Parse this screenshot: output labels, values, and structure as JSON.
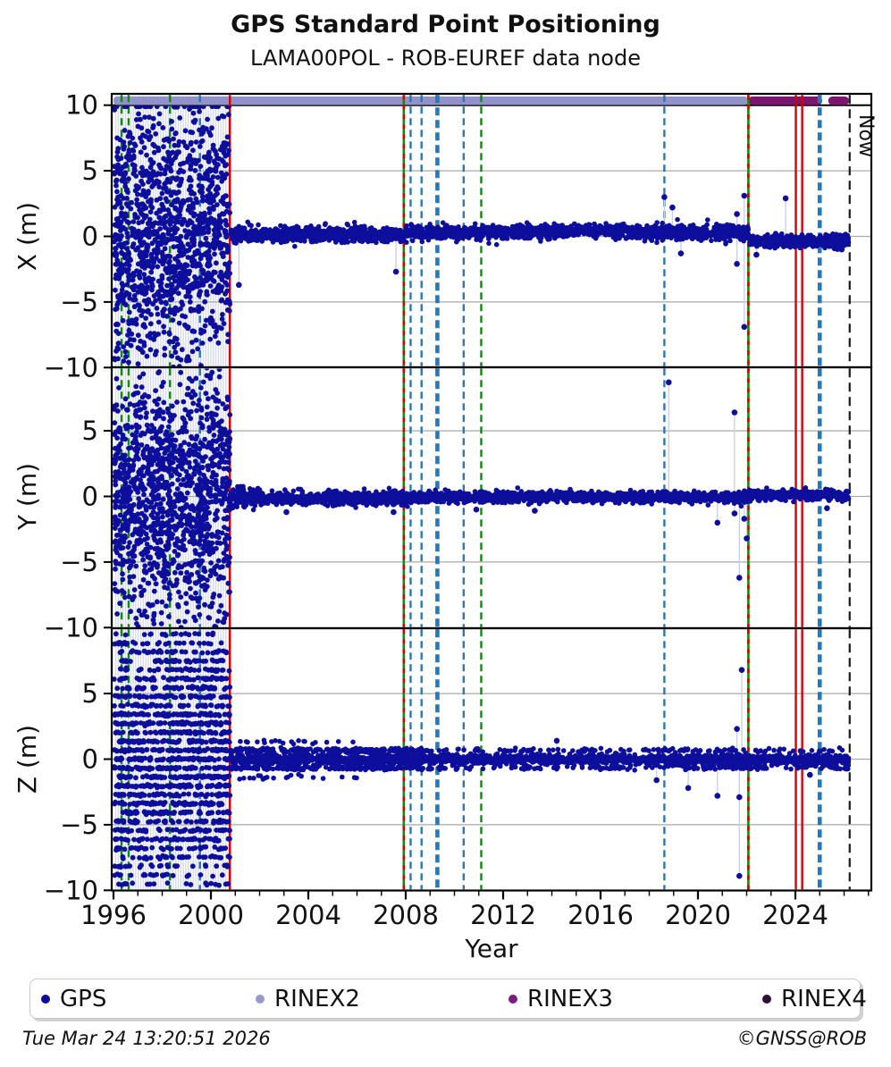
{
  "header": {
    "title": "GPS Standard Point Positioning",
    "subtitle": "LAMA00POL - ROB-EUREF data node"
  },
  "legend": {
    "items": [
      {
        "label": "GPS",
        "color": "#0a0a9b"
      },
      {
        "label": "RINEX2",
        "color": "#9898ce"
      },
      {
        "label": "RINEX3",
        "color": "#7a1d7e"
      },
      {
        "label": "RINEX4",
        "color": "#2e0f38"
      }
    ]
  },
  "footer": {
    "timestamp": "Tue Mar 24 13:20:51 2026",
    "credit": "©GNSS@ROB"
  },
  "chart_data": {
    "type": "scatter",
    "title": "GPS Standard Point Positioning",
    "subtitle": "LAMA00POL - ROB-EUREF data node",
    "xlabel": "Year",
    "x_range": [
      1995.93,
      2027.15
    ],
    "x_ticks_major": [
      1996,
      2000,
      2004,
      2008,
      2012,
      2016,
      2020,
      2024
    ],
    "x_minor_step": 1,
    "gridlines_y": [
      5,
      0,
      -5
    ],
    "grid_on": true,
    "now_year": 2026.23,
    "now_label": "Now",
    "point_color": "#0e0e9c",
    "colors": {
      "green": "#0e8a0e",
      "blue": "#2878b8",
      "red": "#d40000",
      "black": "#1a1a1a",
      "rinex2_bar": "#9292cb",
      "rinex3_bar": "#7c156e",
      "grid": "#a9a9a9",
      "stripe": "#ccd1e6"
    },
    "rinex_bar": {
      "rinex2_segments": [
        [
          1996.0,
          2022.05
        ]
      ],
      "rinex3_segments": [
        [
          2022.07,
          2025.1
        ],
        [
          2025.35,
          2026.2
        ]
      ]
    },
    "event_lines": [
      {
        "year": 1996.33,
        "color": "green",
        "style": "dashed"
      },
      {
        "year": 1996.62,
        "color": "green",
        "style": "dashed"
      },
      {
        "year": 1998.32,
        "color": "green",
        "style": "dashed"
      },
      {
        "year": 1999.55,
        "color": "blue",
        "style": "dashed"
      },
      {
        "year": 2000.78,
        "color": "red",
        "style": "solid"
      },
      {
        "year": 2007.92,
        "color": "green",
        "style": "solid-red-overlay"
      },
      {
        "year": 2008.2,
        "color": "blue",
        "style": "dashed"
      },
      {
        "year": 2008.65,
        "color": "blue",
        "style": "dashed"
      },
      {
        "year": 2009.3,
        "color": "blue",
        "style": "thick-dashed"
      },
      {
        "year": 2010.38,
        "color": "blue",
        "style": "dashed"
      },
      {
        "year": 2011.1,
        "color": "green",
        "style": "dashed"
      },
      {
        "year": 2018.62,
        "color": "blue",
        "style": "dashed"
      },
      {
        "year": 2022.07,
        "color": "green",
        "style": "solid-red-overlay"
      },
      {
        "year": 2024.02,
        "color": "red",
        "style": "solid"
      },
      {
        "year": 2024.28,
        "color": "red",
        "style": "solid"
      },
      {
        "year": 2025.0,
        "color": "blue",
        "style": "thick-dashed"
      },
      {
        "year": 2026.23,
        "color": "black",
        "style": "dashed",
        "label": "Now"
      }
    ],
    "subplots": [
      {
        "ylabel": "X (m)",
        "ylim": [
          -10,
          10
        ],
        "yticks": [
          10,
          5,
          0,
          -5,
          -10
        ],
        "dense_cloud": {
          "x_range": [
            1996.03,
            2000.78
          ],
          "center": 0,
          "sd": 4.8,
          "n": 1350,
          "quantize": 0
        },
        "band_density_per_year": 95,
        "band_segments": [
          [
            2000.78,
            2008.0,
            0.15,
            0.3
          ],
          [
            2008.0,
            2014.0,
            0.3,
            0.27
          ],
          [
            2014.0,
            2017.0,
            0.45,
            0.25
          ],
          [
            2017.0,
            2022.07,
            0.3,
            0.3
          ],
          [
            2022.07,
            2026.2,
            -0.35,
            0.25
          ]
        ],
        "side_rows": [],
        "outliers": [
          [
            2001.15,
            -3.7
          ],
          [
            2007.6,
            -2.7
          ],
          [
            2018.62,
            3.0
          ],
          [
            2018.95,
            2.2
          ],
          [
            2019.3,
            -1.3
          ],
          [
            2021.6,
            1.7
          ],
          [
            2021.9,
            3.1
          ],
          [
            2021.6,
            -2.1
          ],
          [
            2021.9,
            -6.9
          ],
          [
            2022.4,
            -1.4
          ],
          [
            2023.6,
            2.9
          ],
          [
            2025.9,
            -1.0
          ]
        ]
      },
      {
        "ylabel": "Y (m)",
        "ylim": [
          -10,
          10
        ],
        "yticks": [
          5,
          0,
          -5,
          -10
        ],
        "dense_cloud": {
          "x_range": [
            1996.03,
            2000.78
          ],
          "center": 0,
          "sd": 4.8,
          "n": 1350,
          "quantize": 0
        },
        "band_density_per_year": 95,
        "band_segments": [
          [
            2000.78,
            2002.0,
            -0.1,
            0.4
          ],
          [
            2002.0,
            2009.0,
            -0.15,
            0.25
          ],
          [
            2009.0,
            2022.0,
            -0.05,
            0.2
          ],
          [
            2022.0,
            2026.2,
            0.1,
            0.2
          ]
        ],
        "side_rows": [],
        "outliers": [
          [
            2003.1,
            -1.2
          ],
          [
            2007.5,
            -1.2
          ],
          [
            2010.9,
            -1.0
          ],
          [
            2013.3,
            -1.1
          ],
          [
            2018.8,
            8.7
          ],
          [
            2020.8,
            -2.0
          ],
          [
            2021.5,
            6.4
          ],
          [
            2021.5,
            -1.3
          ],
          [
            2021.9,
            -1.7
          ],
          [
            2022.0,
            -3.2
          ],
          [
            2021.7,
            -6.2
          ],
          [
            2025.3,
            -0.9
          ]
        ]
      },
      {
        "ylabel": "Z (m)",
        "ylim": [
          -10,
          10
        ],
        "yticks": [
          5,
          0,
          -5,
          -10
        ],
        "dense_cloud": {
          "x_range": [
            1996.03,
            2000.78
          ],
          "center": 0,
          "sd": 5.5,
          "n": 1750,
          "quantize": 0.68
        },
        "band_density_per_year": 80,
        "band_segments": [
          [
            2000.78,
            2009.0,
            -0.05,
            0.2
          ],
          [
            2009.0,
            2026.2,
            -0.02,
            0.18
          ]
        ],
        "side_rows": [
          [
            2000.78,
            2009.0,
            0.68,
            26
          ],
          [
            2000.78,
            2009.0,
            -0.68,
            22
          ],
          [
            2009.0,
            2026.2,
            0.68,
            7
          ],
          [
            2009.0,
            2026.2,
            -0.68,
            7
          ],
          [
            2001.0,
            2006.0,
            1.35,
            4
          ],
          [
            2001.0,
            2006.0,
            -1.35,
            4
          ],
          [
            2018.0,
            2026.2,
            -0.5,
            6
          ]
        ],
        "outliers": [
          [
            2014.2,
            1.4
          ],
          [
            2018.3,
            -1.6
          ],
          [
            2019.6,
            -2.2
          ],
          [
            2020.8,
            -2.8
          ],
          [
            2021.6,
            2.3
          ],
          [
            2021.7,
            -2.9
          ],
          [
            2021.7,
            -8.9
          ],
          [
            2021.8,
            6.8
          ],
          [
            2024.6,
            -1.2
          ]
        ]
      }
    ]
  }
}
